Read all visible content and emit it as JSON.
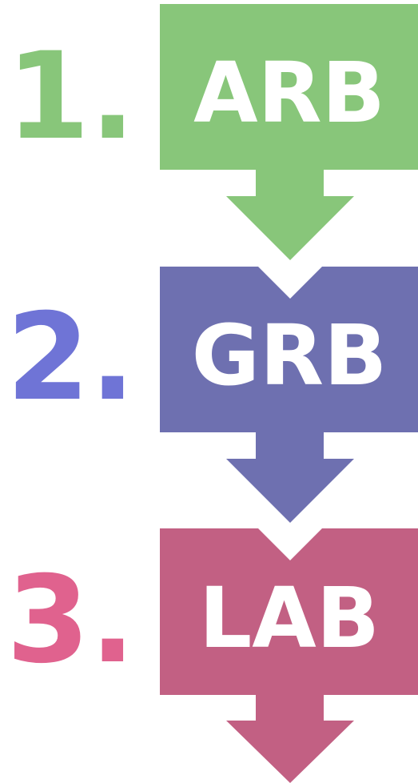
{
  "steps": [
    {
      "number": "1.",
      "label": "ARB"
    },
    {
      "number": "2.",
      "label": "GRB"
    },
    {
      "number": "3.",
      "label": "LAB"
    }
  ]
}
